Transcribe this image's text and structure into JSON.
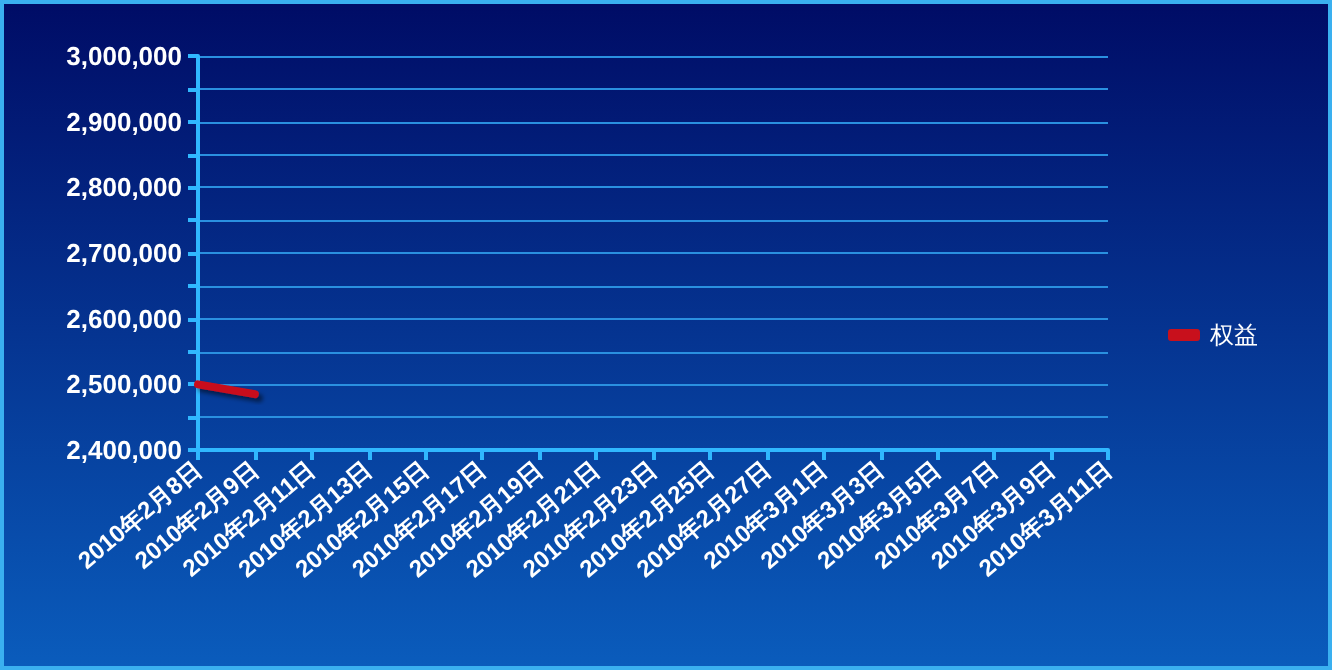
{
  "chart_data": {
    "type": "line",
    "categories": [
      "2010年2月8日",
      "2010年2月9日",
      "2010年2月11日",
      "2010年2月13日",
      "2010年2月15日",
      "2010年2月17日",
      "2010年2月19日",
      "2010年2月21日",
      "2010年2月23日",
      "2010年2月25日",
      "2010年2月27日",
      "2010年3月1日",
      "2010年3月3日",
      "2010年3月5日",
      "2010年3月7日",
      "2010年3月9日",
      "2010年3月11日"
    ],
    "series": [
      {
        "name": "权益",
        "color": "#c8101c",
        "values": [
          2500000,
          2485000,
          null,
          null,
          null,
          null,
          null,
          null,
          null,
          null,
          null,
          null,
          null,
          null,
          null,
          null,
          null
        ]
      }
    ],
    "ylim": [
      2400000,
      3000000
    ],
    "yticks": [
      {
        "value": 2400000,
        "label": "2,400,000"
      },
      {
        "value": 2450000,
        "label": null
      },
      {
        "value": 2500000,
        "label": "2,500,000"
      },
      {
        "value": 2550000,
        "label": null
      },
      {
        "value": 2600000,
        "label": "2,600,000"
      },
      {
        "value": 2650000,
        "label": null
      },
      {
        "value": 2700000,
        "label": "2,700,000"
      },
      {
        "value": 2750000,
        "label": null
      },
      {
        "value": 2800000,
        "label": "2,800,000"
      },
      {
        "value": 2850000,
        "label": null
      },
      {
        "value": 2900000,
        "label": "2,900,000"
      },
      {
        "value": 2950000,
        "label": null
      },
      {
        "value": 3000000,
        "label": "3,000,000"
      }
    ],
    "grid": "y",
    "legend": "right",
    "marker": "none",
    "line_style": "solid"
  }
}
